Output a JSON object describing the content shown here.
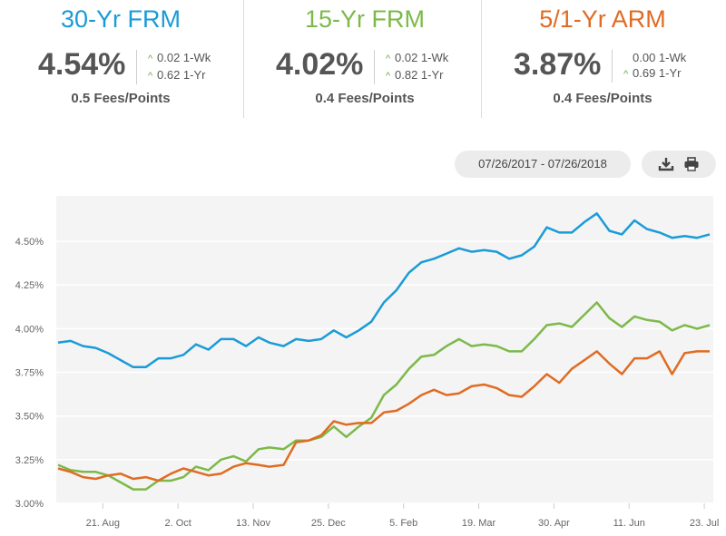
{
  "rates": [
    {
      "title": "30-Yr FRM",
      "rate": "4.54%",
      "wk": "0.02 1-Wk",
      "yr": "0.62 1-Yr",
      "fees": "0.5 Fees/Points",
      "color": "#1a9bd7"
    },
    {
      "title": "15-Yr FRM",
      "rate": "4.02%",
      "wk": "0.02 1-Wk",
      "yr": "0.82 1-Yr",
      "fees": "0.4 Fees/Points",
      "color": "#7cb94a"
    },
    {
      "title": "5/1-Yr ARM",
      "rate": "3.87%",
      "wk": "0.00 1-Wk",
      "yr": "0.69 1-Yr",
      "fees": "0.4 Fees/Points",
      "color": "#e06b22"
    }
  ],
  "toolbar": {
    "date_range": "07/26/2017 - 07/26/2018",
    "download_icon": "download-icon",
    "print_icon": "print-icon"
  },
  "chart_data": {
    "type": "line",
    "x": [
      "2017-07-27",
      "2017-08-03",
      "2017-08-10",
      "2017-08-17",
      "2017-08-24",
      "2017-08-31",
      "2017-09-07",
      "2017-09-14",
      "2017-09-21",
      "2017-09-28",
      "2017-10-05",
      "2017-10-12",
      "2017-10-19",
      "2017-10-26",
      "2017-11-02",
      "2017-11-09",
      "2017-11-16",
      "2017-11-22",
      "2017-11-30",
      "2017-12-07",
      "2017-12-14",
      "2017-12-21",
      "2017-12-28",
      "2018-01-04",
      "2018-01-11",
      "2018-01-18",
      "2018-01-25",
      "2018-02-01",
      "2018-02-08",
      "2018-02-15",
      "2018-02-22",
      "2018-03-01",
      "2018-03-08",
      "2018-03-15",
      "2018-03-22",
      "2018-03-29",
      "2018-04-05",
      "2018-04-12",
      "2018-04-19",
      "2018-04-26",
      "2018-05-03",
      "2018-05-10",
      "2018-05-17",
      "2018-05-24",
      "2018-05-31",
      "2018-06-07",
      "2018-06-14",
      "2018-06-21",
      "2018-06-28",
      "2018-07-05",
      "2018-07-12",
      "2018-07-19",
      "2018-07-26"
    ],
    "x_tick_labels": [
      "21. Aug",
      "2. Oct",
      "13. Nov",
      "25. Dec",
      "5. Feb",
      "19. Mar",
      "30. Apr",
      "11. Jun",
      "23. Jul"
    ],
    "x_tick_dates": [
      "2017-08-21",
      "2017-10-02",
      "2017-11-13",
      "2017-12-25",
      "2018-02-05",
      "2018-03-19",
      "2018-04-30",
      "2018-06-11",
      "2018-07-23"
    ],
    "y_tick_labels": [
      "3.00%",
      "3.25%",
      "3.50%",
      "3.75%",
      "4.00%",
      "4.25%",
      "4.50%"
    ],
    "y_ticks": [
      3.0,
      3.25,
      3.5,
      3.75,
      4.0,
      4.25,
      4.5
    ],
    "ylim": [
      3.0,
      4.76
    ],
    "grid": true,
    "series": [
      {
        "name": "30-Yr FRM",
        "color": "#1a9bd7",
        "values": [
          3.92,
          3.93,
          3.9,
          3.89,
          3.86,
          3.82,
          3.78,
          3.78,
          3.83,
          3.83,
          3.85,
          3.91,
          3.88,
          3.94,
          3.94,
          3.9,
          3.95,
          3.92,
          3.9,
          3.94,
          3.93,
          3.94,
          3.99,
          3.95,
          3.99,
          4.04,
          4.15,
          4.22,
          4.32,
          4.38,
          4.4,
          4.43,
          4.46,
          4.44,
          4.45,
          4.44,
          4.4,
          4.42,
          4.47,
          4.58,
          4.55,
          4.55,
          4.61,
          4.66,
          4.56,
          4.54,
          4.62,
          4.57,
          4.55,
          4.52,
          4.53,
          4.52,
          4.54
        ]
      },
      {
        "name": "15-Yr FRM",
        "color": "#7cb94a",
        "values": [
          3.22,
          3.19,
          3.18,
          3.18,
          3.16,
          3.12,
          3.08,
          3.08,
          3.13,
          3.13,
          3.15,
          3.21,
          3.19,
          3.25,
          3.27,
          3.24,
          3.31,
          3.32,
          3.31,
          3.36,
          3.36,
          3.38,
          3.44,
          3.38,
          3.44,
          3.49,
          3.62,
          3.68,
          3.77,
          3.84,
          3.85,
          3.9,
          3.94,
          3.9,
          3.91,
          3.9,
          3.87,
          3.87,
          3.94,
          4.02,
          4.03,
          4.01,
          4.08,
          4.15,
          4.06,
          4.01,
          4.07,
          4.05,
          4.04,
          3.99,
          4.02,
          4.0,
          4.02
        ]
      },
      {
        "name": "5/1-Yr ARM",
        "color": "#e06b22",
        "values": [
          3.2,
          3.18,
          3.15,
          3.14,
          3.16,
          3.17,
          3.14,
          3.15,
          3.13,
          3.17,
          3.2,
          3.18,
          3.16,
          3.17,
          3.21,
          3.23,
          3.22,
          3.21,
          3.22,
          3.35,
          3.36,
          3.39,
          3.47,
          3.45,
          3.46,
          3.46,
          3.52,
          3.53,
          3.57,
          3.62,
          3.65,
          3.62,
          3.63,
          3.67,
          3.68,
          3.66,
          3.62,
          3.61,
          3.67,
          3.74,
          3.69,
          3.77,
          3.82,
          3.87,
          3.8,
          3.74,
          3.83,
          3.83,
          3.87,
          3.74,
          3.86,
          3.87,
          3.87
        ]
      }
    ]
  }
}
